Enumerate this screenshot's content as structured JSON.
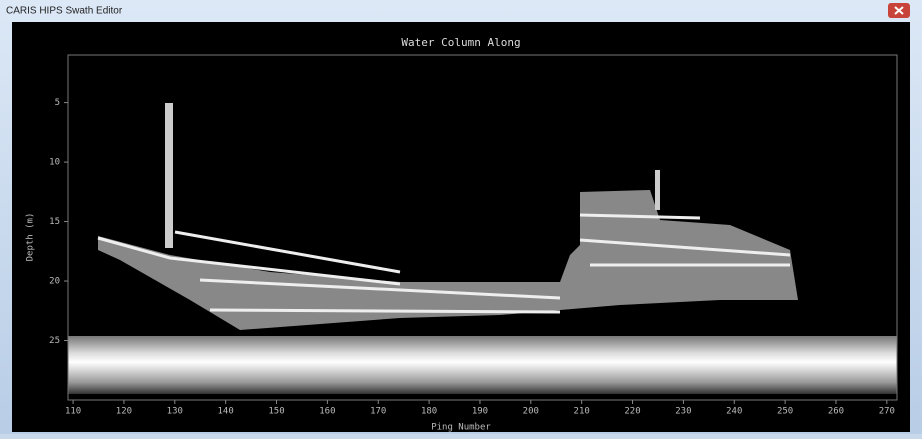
{
  "window": {
    "title": "CARIS HIPS Swath Editor"
  },
  "plot": {
    "title": "Water Column Along",
    "x_label": "Ping Number",
    "y_label": "Depth (m)",
    "xlim": [
      109,
      272
    ],
    "xticks": [
      110,
      120,
      130,
      140,
      150,
      160,
      170,
      180,
      190,
      200,
      210,
      220,
      230,
      240,
      250,
      260,
      270
    ],
    "ylim": [
      1,
      30
    ],
    "yticks": [
      5,
      10,
      15,
      20,
      25
    ]
  }
}
